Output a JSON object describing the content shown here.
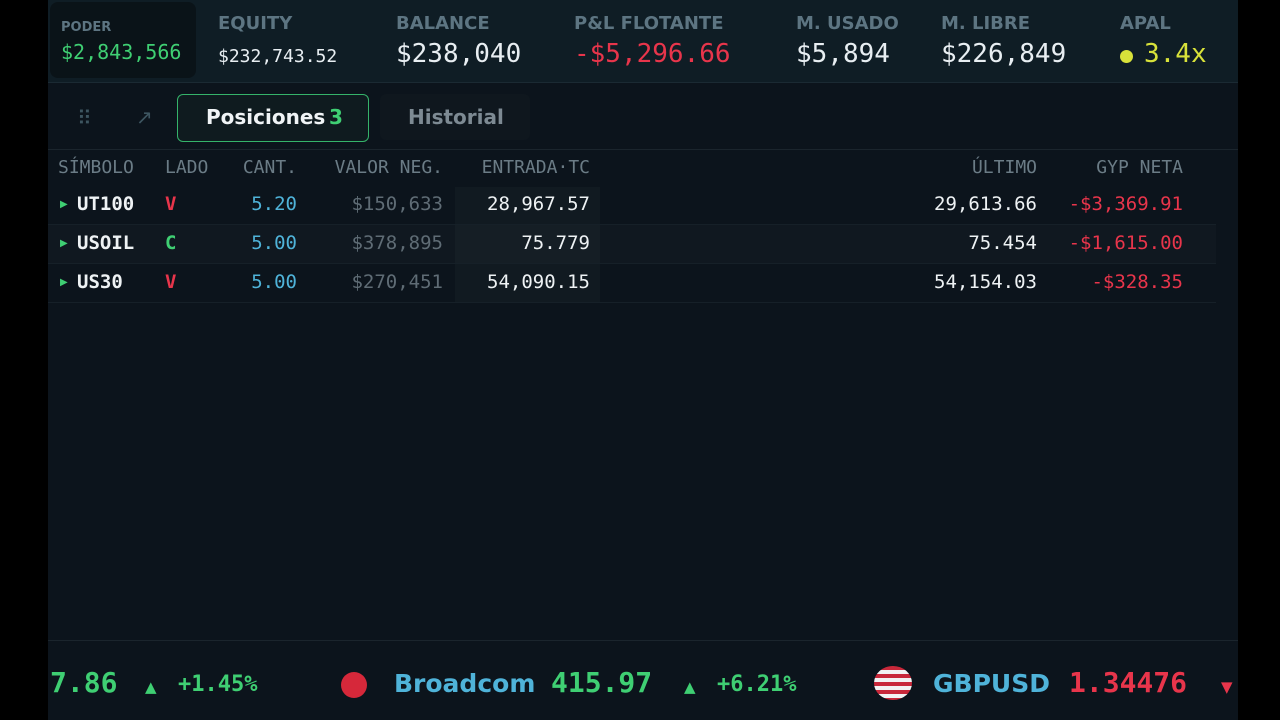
{
  "stats": [
    {
      "label": "PODER",
      "value": "$2,843,566"
    },
    {
      "label": "EQUITY",
      "value": "$232,743.52"
    },
    {
      "label": "BALANCE",
      "value": "$238,040"
    },
    {
      "label": "P&L FLOTANTE",
      "value": "-$5,296.66"
    },
    {
      "label": "M. USADO",
      "value": "$5,894"
    },
    {
      "label": "M. LIBRE",
      "value": "$226,849"
    },
    {
      "label": "APAL",
      "value": "3.4x"
    }
  ],
  "tabs": [
    {
      "label": "Posiciones",
      "count": "3"
    },
    {
      "label": "Historial"
    }
  ],
  "table": {
    "columns": [
      "SÍMBOLO",
      "LADO",
      "CANT.",
      "VALOR NEG.",
      "ENTRADA·TC",
      "ÚLTIMO",
      "GYP NETA"
    ],
    "rows": [
      [
        "UT100",
        "V",
        "5.20",
        "$150,633",
        "28,967.57",
        "29,613.66",
        "-$3,369.91"
      ],
      [
        "USOIL",
        "C",
        "5.00",
        "$378,895",
        "75.779",
        "75.454",
        "-$1,615.00"
      ],
      [
        "US30",
        "V",
        "5.00",
        "$270,451",
        "54,090.15",
        "54,154.03",
        "-$328.35"
      ]
    ]
  },
  "ticker": [
    {
      "price": "7.86",
      "change": "+1.45%"
    },
    {
      "name": "Broadcom",
      "price": "415.97",
      "change": "+6.21%"
    },
    {
      "name": "GBPUSD",
      "price": "1.34476"
    }
  ]
}
